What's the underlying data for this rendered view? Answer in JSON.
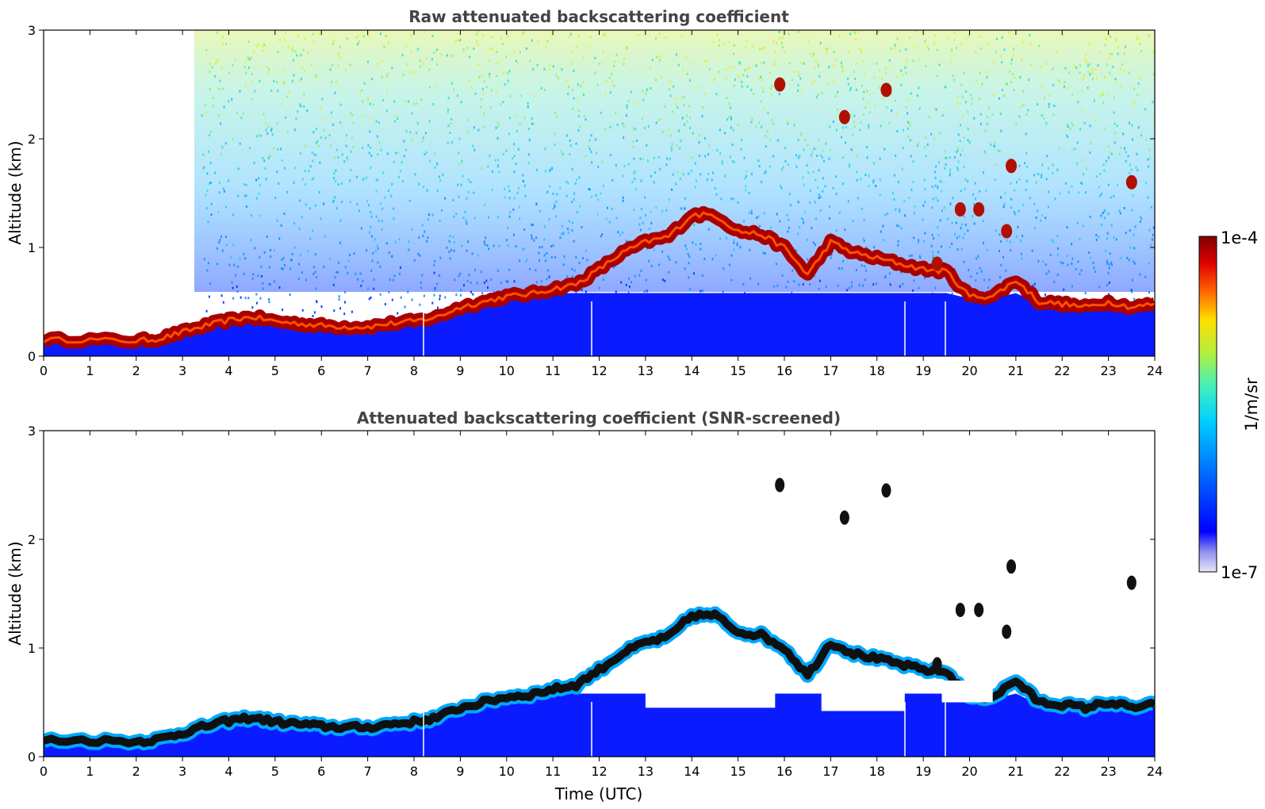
{
  "chart_data": [
    {
      "type": "heatmap",
      "title": "Raw attenuated backscattering coefficient",
      "xlabel": "",
      "ylabel": "Altitude (km)",
      "xlim": [
        0,
        24
      ],
      "ylim": [
        0,
        3
      ],
      "xticks": [
        "0",
        "1",
        "2",
        "3",
        "4",
        "5",
        "6",
        "7",
        "8",
        "9",
        "10",
        "11",
        "12",
        "13",
        "14",
        "15",
        "16",
        "17",
        "18",
        "19",
        "20",
        "21",
        "22",
        "23",
        "24"
      ],
      "yticks": [
        "0",
        "1",
        "2",
        "3"
      ],
      "boundary_layer_top_km": [
        {
          "t": 0,
          "z": 0.15
        },
        {
          "t": 1,
          "z": 0.15
        },
        {
          "t": 2,
          "z": 0.14
        },
        {
          "t": 2.5,
          "z": 0.16
        },
        {
          "t": 3,
          "z": 0.22
        },
        {
          "t": 3.5,
          "z": 0.28
        },
        {
          "t": 4,
          "z": 0.33
        },
        {
          "t": 4.5,
          "z": 0.36
        },
        {
          "t": 5,
          "z": 0.32
        },
        {
          "t": 5.5,
          "z": 0.3
        },
        {
          "t": 6,
          "z": 0.28
        },
        {
          "t": 6.5,
          "z": 0.27
        },
        {
          "t": 7,
          "z": 0.27
        },
        {
          "t": 7.5,
          "z": 0.3
        },
        {
          "t": 8,
          "z": 0.32
        },
        {
          "t": 8.5,
          "z": 0.36
        },
        {
          "t": 9,
          "z": 0.45
        },
        {
          "t": 9.5,
          "z": 0.5
        },
        {
          "t": 10,
          "z": 0.55
        },
        {
          "t": 10.5,
          "z": 0.57
        },
        {
          "t": 11,
          "z": 0.62
        },
        {
          "t": 11.5,
          "z": 0.66
        },
        {
          "t": 12,
          "z": 0.8
        },
        {
          "t": 12.5,
          "z": 0.95
        },
        {
          "t": 13,
          "z": 1.05
        },
        {
          "t": 13.5,
          "z": 1.1
        },
        {
          "t": 14,
          "z": 1.3
        },
        {
          "t": 14.5,
          "z": 1.3
        },
        {
          "t": 15,
          "z": 1.15
        },
        {
          "t": 15.5,
          "z": 1.12
        },
        {
          "t": 16,
          "z": 1.0
        },
        {
          "t": 16.5,
          "z": 0.75
        },
        {
          "t": 17,
          "z": 1.05
        },
        {
          "t": 17.5,
          "z": 0.95
        },
        {
          "t": 18,
          "z": 0.9
        },
        {
          "t": 18.5,
          "z": 0.85
        },
        {
          "t": 19,
          "z": 0.8
        },
        {
          "t": 19.5,
          "z": 0.78
        },
        {
          "t": 20,
          "z": 0.55
        },
        {
          "t": 20.5,
          "z": 0.55
        },
        {
          "t": 21,
          "z": 0.7
        },
        {
          "t": 21.5,
          "z": 0.5
        },
        {
          "t": 22,
          "z": 0.48
        },
        {
          "t": 22.5,
          "z": 0.45
        },
        {
          "t": 23,
          "z": 0.5
        },
        {
          "t": 23.5,
          "z": 0.45
        },
        {
          "t": 24,
          "z": 0.48
        }
      ],
      "cloud_patches": [
        {
          "t": 15.9,
          "z": 2.5
        },
        {
          "t": 17.3,
          "z": 2.2
        },
        {
          "t": 18.2,
          "z": 2.45
        },
        {
          "t": 20.9,
          "z": 1.75
        },
        {
          "t": 23.5,
          "z": 1.6
        },
        {
          "t": 19.8,
          "z": 1.35
        },
        {
          "t": 20.2,
          "z": 1.35
        },
        {
          "t": 20.8,
          "z": 1.15
        },
        {
          "t": 19.3,
          "z": 0.85
        }
      ]
    },
    {
      "type": "heatmap",
      "title": "Attenuated backscattering coefficient (SNR-screened)",
      "xlabel": "Time (UTC)",
      "ylabel": "Altitude (km)",
      "xlim": [
        0,
        24
      ],
      "ylim": [
        0,
        3
      ],
      "xticks": [
        "0",
        "1",
        "2",
        "3",
        "4",
        "5",
        "6",
        "7",
        "8",
        "9",
        "10",
        "11",
        "12",
        "13",
        "14",
        "15",
        "16",
        "17",
        "18",
        "19",
        "20",
        "21",
        "22",
        "23",
        "24"
      ],
      "yticks": [
        "0",
        "1",
        "2",
        "3"
      ]
    }
  ],
  "colorbar": {
    "label": "1/m/sr",
    "max_label": "1e-4",
    "min_label": "1e-7",
    "colors": [
      "#e8e8f8",
      "#9090f0",
      "#0000ff",
      "#0070ff",
      "#00d0ff",
      "#40f0c0",
      "#b0f040",
      "#ffe000",
      "#ff6000",
      "#e00000",
      "#800000"
    ]
  }
}
